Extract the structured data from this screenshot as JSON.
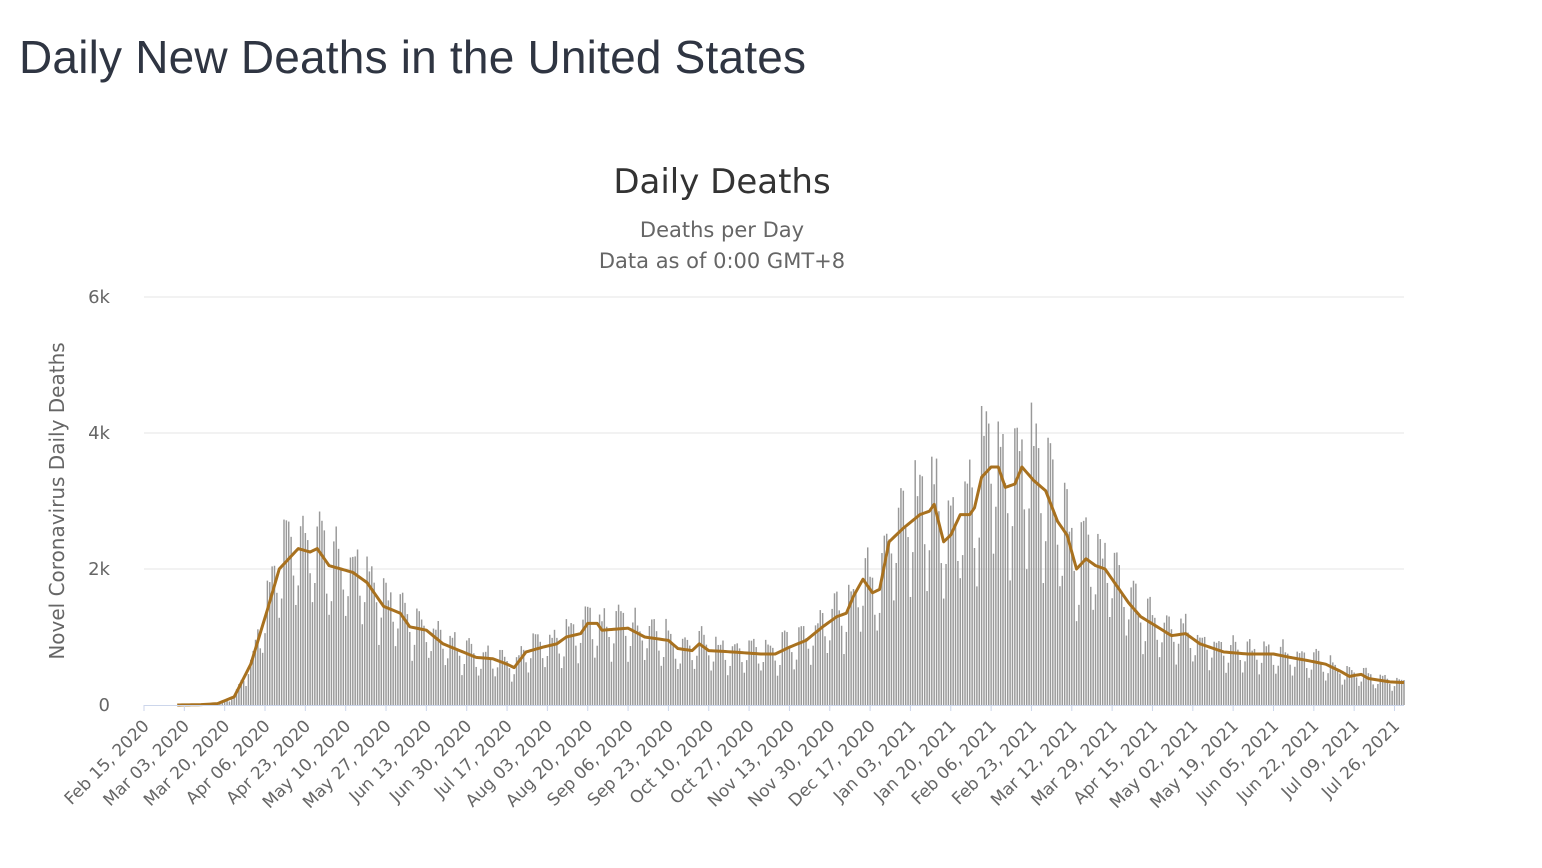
{
  "page": {
    "title": "Daily New Deaths in the United States"
  },
  "chart_data": {
    "type": "bar",
    "title": "Daily Deaths",
    "subtitle_lines": [
      "Deaths per Day",
      "Data as of 0:00 GMT+8"
    ],
    "xlabel": "",
    "ylabel": "Novel Coronavirus Daily Deaths",
    "ylim": [
      0,
      6000
    ],
    "yticks": [
      0,
      2000,
      4000,
      6000
    ],
    "ytick_labels": [
      "0",
      "2k",
      "4k",
      "6k"
    ],
    "x_start": "2020-02-15",
    "x_end": "2021-07-30",
    "xtick_labels": [
      "Feb 15, 2020",
      "Mar 03, 2020",
      "Mar 20, 2020",
      "Apr 06, 2020",
      "Apr 23, 2020",
      "May 10, 2020",
      "May 27, 2020",
      "Jun 13, 2020",
      "Jun 30, 2020",
      "Jul 17, 2020",
      "Aug 03, 2020",
      "Aug 20, 2020",
      "Sep 06, 2020",
      "Sep 23, 2020",
      "Oct 10, 2020",
      "Oct 27, 2020",
      "Nov 13, 2020",
      "Nov 30, 2020",
      "Dec 17, 2020",
      "Jan 03, 2021",
      "Jan 20, 2021",
      "Feb 06, 2021",
      "Feb 23, 2021",
      "Mar 12, 2021",
      "Mar 29, 2021",
      "Apr 15, 2021",
      "May 02, 2021",
      "May 19, 2021",
      "Jun 05, 2021",
      "Jun 22, 2021",
      "Jul 09, 2021",
      "Jul 26, 2021"
    ],
    "grid": true,
    "legend": "none",
    "series": [
      {
        "kind": "bar",
        "color": "#999999",
        "description": "Daily deaths: bars estimated from the 7-day average level with a weekly reporting cycle (low weekends, high mid-week)"
      },
      {
        "kind": "line",
        "color": "#a8711f",
        "anchors": [
          [
            "2020-02-29",
            0
          ],
          [
            "2020-03-10",
            5
          ],
          [
            "2020-03-17",
            20
          ],
          [
            "2020-03-24",
            120
          ],
          [
            "2020-03-31",
            600
          ],
          [
            "2020-04-07",
            1400
          ],
          [
            "2020-04-12",
            2000
          ],
          [
            "2020-04-16",
            2150
          ],
          [
            "2020-04-20",
            2300
          ],
          [
            "2020-04-25",
            2250
          ],
          [
            "2020-04-28",
            2300
          ],
          [
            "2020-05-03",
            2050
          ],
          [
            "2020-05-13",
            1950
          ],
          [
            "2020-05-19",
            1800
          ],
          [
            "2020-05-26",
            1450
          ],
          [
            "2020-06-02",
            1350
          ],
          [
            "2020-06-06",
            1150
          ],
          [
            "2020-06-13",
            1100
          ],
          [
            "2020-06-20",
            900
          ],
          [
            "2020-06-27",
            800
          ],
          [
            "2020-07-04",
            700
          ],
          [
            "2020-07-11",
            680
          ],
          [
            "2020-07-17",
            600
          ],
          [
            "2020-07-20",
            550
          ],
          [
            "2020-07-25",
            780
          ],
          [
            "2020-08-01",
            850
          ],
          [
            "2020-08-07",
            900
          ],
          [
            "2020-08-11",
            1000
          ],
          [
            "2020-08-17",
            1050
          ],
          [
            "2020-08-20",
            1200
          ],
          [
            "2020-08-24",
            1200
          ],
          [
            "2020-08-26",
            1100
          ],
          [
            "2020-09-06",
            1130
          ],
          [
            "2020-09-13",
            1000
          ],
          [
            "2020-09-23",
            950
          ],
          [
            "2020-09-27",
            830
          ],
          [
            "2020-10-03",
            800
          ],
          [
            "2020-10-06",
            900
          ],
          [
            "2020-10-10",
            800
          ],
          [
            "2020-10-20",
            780
          ],
          [
            "2020-11-01",
            750
          ],
          [
            "2020-11-07",
            750
          ],
          [
            "2020-11-13",
            850
          ],
          [
            "2020-11-20",
            950
          ],
          [
            "2020-11-27",
            1150
          ],
          [
            "2020-12-03",
            1300
          ],
          [
            "2020-12-07",
            1350
          ],
          [
            "2020-12-10",
            1600
          ],
          [
            "2020-12-14",
            1850
          ],
          [
            "2020-12-18",
            1650
          ],
          [
            "2020-12-21",
            1700
          ],
          [
            "2020-12-25",
            2400
          ],
          [
            "2020-12-31",
            2600
          ],
          [
            "2021-01-07",
            2800
          ],
          [
            "2021-01-11",
            2850
          ],
          [
            "2021-01-13",
            2950
          ],
          [
            "2021-01-17",
            2400
          ],
          [
            "2021-01-20",
            2500
          ],
          [
            "2021-01-24",
            2800
          ],
          [
            "2021-01-28",
            2800
          ],
          [
            "2021-01-30",
            2900
          ],
          [
            "2021-02-02",
            3350
          ],
          [
            "2021-02-06",
            3500
          ],
          [
            "2021-02-09",
            3500
          ],
          [
            "2021-02-12",
            3200
          ],
          [
            "2021-02-16",
            3250
          ],
          [
            "2021-02-19",
            3500
          ],
          [
            "2021-02-24",
            3300
          ],
          [
            "2021-03-01",
            3150
          ],
          [
            "2021-03-06",
            2700
          ],
          [
            "2021-03-10",
            2500
          ],
          [
            "2021-03-14",
            2000
          ],
          [
            "2021-03-18",
            2150
          ],
          [
            "2021-03-22",
            2050
          ],
          [
            "2021-03-26",
            2000
          ],
          [
            "2021-03-31",
            1750
          ],
          [
            "2021-04-05",
            1500
          ],
          [
            "2021-04-10",
            1300
          ],
          [
            "2021-04-17",
            1150
          ],
          [
            "2021-04-23",
            1020
          ],
          [
            "2021-04-29",
            1050
          ],
          [
            "2021-05-05",
            900
          ],
          [
            "2021-05-15",
            780
          ],
          [
            "2021-05-25",
            750
          ],
          [
            "2021-06-05",
            750
          ],
          [
            "2021-06-12",
            700
          ],
          [
            "2021-06-20",
            650
          ],
          [
            "2021-06-27",
            600
          ],
          [
            "2021-07-03",
            500
          ],
          [
            "2021-07-07",
            420
          ],
          [
            "2021-07-10",
            440
          ],
          [
            "2021-07-12",
            450
          ],
          [
            "2021-07-15",
            390
          ],
          [
            "2021-07-24",
            340
          ],
          [
            "2021-07-30",
            330
          ]
        ]
      }
    ]
  }
}
